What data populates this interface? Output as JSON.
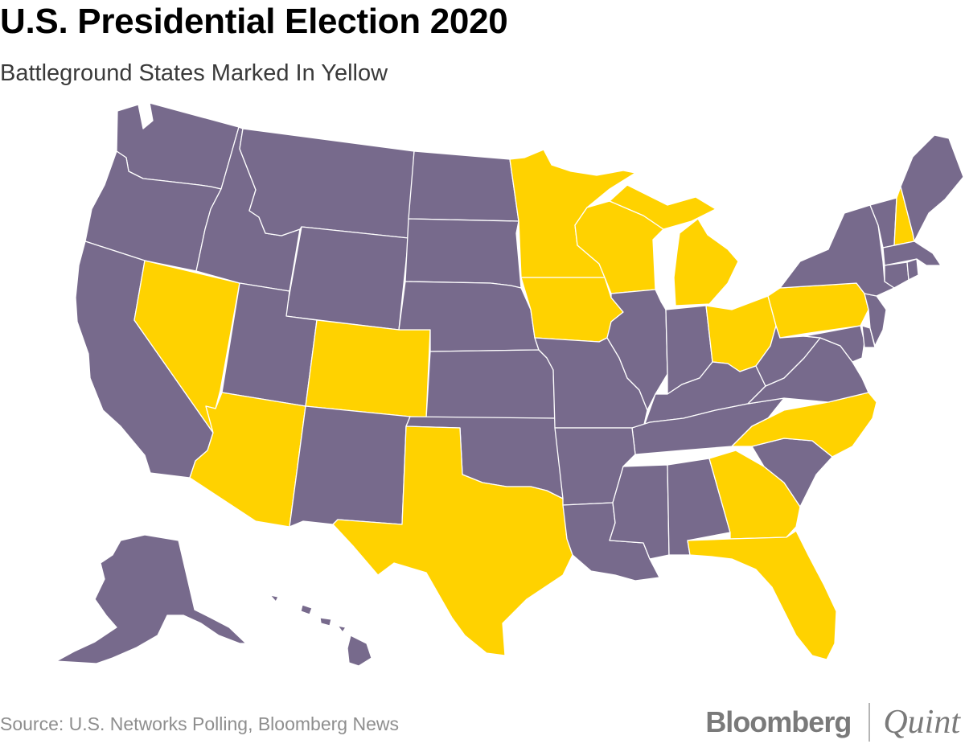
{
  "title": "U.S. Presidential Election 2020",
  "subtitle": "Battleground States Marked In Yellow",
  "source": "Source: U.S. Networks Polling, Bloomberg News",
  "brand": {
    "primary": "Bloomberg",
    "secondary": "Quint"
  },
  "colors": {
    "battleground": "#FFD200",
    "other": "#776A8C",
    "border": "#FFFFFF",
    "background": "#FFFFFF"
  },
  "states": [
    {
      "code": "WA",
      "battleground": false
    },
    {
      "code": "OR",
      "battleground": false
    },
    {
      "code": "CA",
      "battleground": false
    },
    {
      "code": "NV",
      "battleground": true
    },
    {
      "code": "ID",
      "battleground": false
    },
    {
      "code": "MT",
      "battleground": false
    },
    {
      "code": "WY",
      "battleground": false
    },
    {
      "code": "UT",
      "battleground": false
    },
    {
      "code": "AZ",
      "battleground": true
    },
    {
      "code": "CO",
      "battleground": true
    },
    {
      "code": "NM",
      "battleground": false
    },
    {
      "code": "ND",
      "battleground": false
    },
    {
      "code": "SD",
      "battleground": false
    },
    {
      "code": "NE",
      "battleground": false
    },
    {
      "code": "KS",
      "battleground": false
    },
    {
      "code": "OK",
      "battleground": false
    },
    {
      "code": "TX",
      "battleground": true
    },
    {
      "code": "MN",
      "battleground": true
    },
    {
      "code": "IA",
      "battleground": true
    },
    {
      "code": "MO",
      "battleground": false
    },
    {
      "code": "AR",
      "battleground": false
    },
    {
      "code": "LA",
      "battleground": false
    },
    {
      "code": "WI",
      "battleground": true
    },
    {
      "code": "IL",
      "battleground": false
    },
    {
      "code": "MI",
      "battleground": true
    },
    {
      "code": "IN",
      "battleground": false
    },
    {
      "code": "OH",
      "battleground": true
    },
    {
      "code": "KY",
      "battleground": false
    },
    {
      "code": "TN",
      "battleground": false
    },
    {
      "code": "MS",
      "battleground": false
    },
    {
      "code": "AL",
      "battleground": false
    },
    {
      "code": "GA",
      "battleground": true
    },
    {
      "code": "FL",
      "battleground": true
    },
    {
      "code": "SC",
      "battleground": false
    },
    {
      "code": "NC",
      "battleground": true
    },
    {
      "code": "VA",
      "battleground": false
    },
    {
      "code": "WV",
      "battleground": false
    },
    {
      "code": "PA",
      "battleground": true
    },
    {
      "code": "NY",
      "battleground": false
    },
    {
      "code": "VT",
      "battleground": false
    },
    {
      "code": "NH",
      "battleground": true
    },
    {
      "code": "ME",
      "battleground": false
    },
    {
      "code": "MA",
      "battleground": false
    },
    {
      "code": "CT",
      "battleground": false
    },
    {
      "code": "RI",
      "battleground": false
    },
    {
      "code": "NJ",
      "battleground": false
    },
    {
      "code": "DE",
      "battleground": false
    },
    {
      "code": "MD",
      "battleground": false
    },
    {
      "code": "AK",
      "battleground": false
    },
    {
      "code": "HI",
      "battleground": false
    }
  ]
}
